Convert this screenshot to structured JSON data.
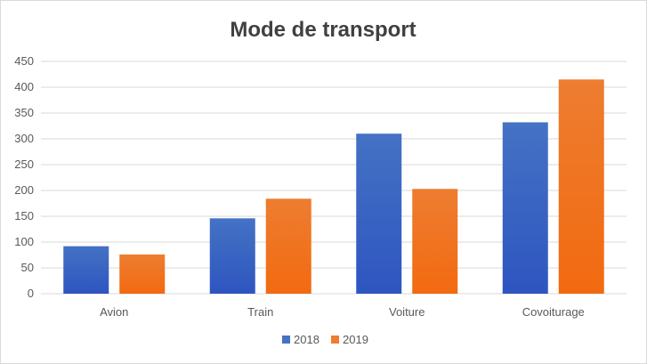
{
  "chart_data": {
    "type": "bar",
    "title": "Mode de transport",
    "xlabel": "",
    "ylabel": "",
    "categories": [
      "Avion",
      "Train",
      "Voiture",
      "Covoiturage"
    ],
    "series": [
      {
        "name": "2018",
        "values": [
          92,
          146,
          310,
          332
        ]
      },
      {
        "name": "2019",
        "values": [
          76,
          184,
          203,
          415
        ]
      }
    ],
    "ylim": [
      0,
      450
    ],
    "yticks": [
      0,
      50,
      100,
      150,
      200,
      250,
      300,
      350,
      400,
      450
    ],
    "grid": true,
    "legend_position": "bottom",
    "colors": {
      "2018_top": "#4472c4",
      "2018_bottom": "#2e55c0",
      "2019_top": "#ed7d31",
      "2019_bottom": "#f26a10"
    }
  }
}
